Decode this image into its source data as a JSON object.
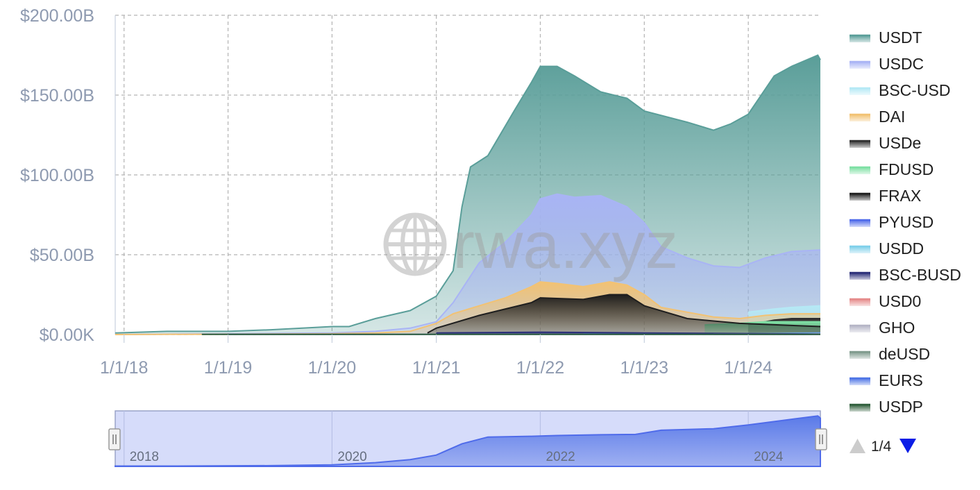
{
  "watermark": "rwa.xyz",
  "chart_data": {
    "type": "area",
    "stacked": false,
    "xlim": [
      "2017-12-01",
      "2024-09-10"
    ],
    "ylim": [
      0,
      200
    ],
    "y_ticks": [
      {
        "value": 0,
        "label": "$0.00K"
      },
      {
        "value": 50,
        "label": "$50.00B"
      },
      {
        "value": 100,
        "label": "$100.00B"
      },
      {
        "value": 150,
        "label": "$150.00B"
      },
      {
        "value": 200,
        "label": "$200.00B"
      }
    ],
    "x_ticks": [
      {
        "date": "2018-01-01",
        "label": "1/1/18"
      },
      {
        "date": "2019-01-01",
        "label": "1/1/19"
      },
      {
        "date": "2020-01-01",
        "label": "1/1/20"
      },
      {
        "date": "2021-01-01",
        "label": "1/1/21"
      },
      {
        "date": "2022-01-01",
        "label": "1/1/22"
      },
      {
        "date": "2023-01-01",
        "label": "1/1/23"
      },
      {
        "date": "2024-01-01",
        "label": "1/1/24"
      }
    ],
    "grid": true,
    "legend_position": "right",
    "series": [
      {
        "name": "USDT",
        "color": "#5a9e99",
        "points": [
          [
            "2017-12-01",
            1
          ],
          [
            "2018-06-01",
            2
          ],
          [
            "2019-01-01",
            2
          ],
          [
            "2019-06-01",
            3
          ],
          [
            "2020-01-01",
            5
          ],
          [
            "2020-03-01",
            5
          ],
          [
            "2020-06-01",
            10
          ],
          [
            "2020-10-01",
            15
          ],
          [
            "2021-01-01",
            24
          ],
          [
            "2021-03-01",
            40
          ],
          [
            "2021-04-01",
            80
          ],
          [
            "2021-05-01",
            105
          ],
          [
            "2021-07-01",
            112
          ],
          [
            "2021-10-01",
            140
          ],
          [
            "2021-12-01",
            158
          ],
          [
            "2022-01-01",
            168
          ],
          [
            "2022-03-01",
            168
          ],
          [
            "2022-05-01",
            162
          ],
          [
            "2022-08-01",
            152
          ],
          [
            "2022-11-01",
            148
          ],
          [
            "2023-01-01",
            140
          ],
          [
            "2023-06-01",
            133
          ],
          [
            "2023-09-01",
            128
          ],
          [
            "2023-11-01",
            132
          ],
          [
            "2024-01-01",
            138
          ],
          [
            "2024-04-01",
            162
          ],
          [
            "2024-06-01",
            168
          ],
          [
            "2024-09-01",
            175
          ],
          [
            "2024-09-10",
            172
          ]
        ]
      },
      {
        "name": "USDC",
        "color": "#a9b4f5",
        "points": [
          [
            "2017-12-01",
            0
          ],
          [
            "2019-01-01",
            0.5
          ],
          [
            "2020-01-01",
            1
          ],
          [
            "2020-06-01",
            2
          ],
          [
            "2020-10-01",
            4
          ],
          [
            "2021-01-01",
            8
          ],
          [
            "2021-03-01",
            20
          ],
          [
            "2021-06-01",
            45
          ],
          [
            "2021-09-01",
            58
          ],
          [
            "2021-12-01",
            75
          ],
          [
            "2022-01-01",
            85
          ],
          [
            "2022-03-01",
            88
          ],
          [
            "2022-05-01",
            86
          ],
          [
            "2022-08-01",
            87
          ],
          [
            "2022-11-01",
            80
          ],
          [
            "2023-01-01",
            70
          ],
          [
            "2023-03-01",
            55
          ],
          [
            "2023-06-01",
            48
          ],
          [
            "2023-09-01",
            43
          ],
          [
            "2023-12-01",
            42
          ],
          [
            "2024-03-01",
            48
          ],
          [
            "2024-06-01",
            52
          ],
          [
            "2024-09-10",
            53
          ]
        ]
      },
      {
        "name": "BSC-USD",
        "color": "#b5e9f5",
        "points": [
          [
            "2024-01-01",
            14
          ],
          [
            "2024-04-01",
            16
          ],
          [
            "2024-06-01",
            17
          ],
          [
            "2024-09-10",
            18
          ]
        ]
      },
      {
        "name": "DAI",
        "color": "#f2c273",
        "points": [
          [
            "2017-12-01",
            0
          ],
          [
            "2020-01-01",
            0.5
          ],
          [
            "2020-06-01",
            1
          ],
          [
            "2020-10-01",
            2
          ],
          [
            "2021-01-01",
            7
          ],
          [
            "2021-03-01",
            13
          ],
          [
            "2021-06-01",
            18
          ],
          [
            "2021-09-01",
            23
          ],
          [
            "2021-12-01",
            30
          ],
          [
            "2022-01-01",
            33
          ],
          [
            "2022-03-01",
            32
          ],
          [
            "2022-06-01",
            30
          ],
          [
            "2022-09-01",
            33
          ],
          [
            "2022-11-01",
            31
          ],
          [
            "2023-01-01",
            25
          ],
          [
            "2023-03-01",
            17
          ],
          [
            "2023-06-01",
            14
          ],
          [
            "2023-09-01",
            11
          ],
          [
            "2023-12-01",
            10
          ],
          [
            "2024-03-01",
            12
          ],
          [
            "2024-06-01",
            13
          ],
          [
            "2024-09-10",
            13
          ]
        ]
      },
      {
        "name": "USDe",
        "color": "#2e2e2e",
        "points": [
          [
            "2024-01-01",
            6
          ],
          [
            "2024-04-01",
            9
          ],
          [
            "2024-06-01",
            10
          ],
          [
            "2024-09-10",
            10
          ]
        ]
      },
      {
        "name": "FDUSD",
        "color": "#7ee0a4",
        "points": [
          [
            "2023-08-01",
            6
          ],
          [
            "2023-12-01",
            7
          ],
          [
            "2024-03-01",
            8
          ],
          [
            "2024-09-10",
            8
          ]
        ]
      },
      {
        "name": "FRAX",
        "color": "#1f1f1f",
        "points": [
          [
            "2020-12-01",
            1
          ],
          [
            "2021-01-01",
            4
          ],
          [
            "2021-06-01",
            12
          ],
          [
            "2021-12-01",
            20
          ],
          [
            "2022-01-01",
            23
          ],
          [
            "2022-06-01",
            22
          ],
          [
            "2022-09-01",
            25
          ],
          [
            "2022-11-01",
            25
          ],
          [
            "2023-01-01",
            18
          ],
          [
            "2023-06-01",
            10
          ],
          [
            "2023-12-01",
            7
          ],
          [
            "2024-09-10",
            5
          ]
        ]
      },
      {
        "name": "PYUSD",
        "color": "#4f6bea",
        "points": [
          [
            "2023-08-01",
            0.2
          ],
          [
            "2024-09-10",
            1
          ]
        ]
      },
      {
        "name": "USDD",
        "color": "#7fd0ea",
        "points": [
          [
            "2022-06-01",
            0.5
          ],
          [
            "2024-09-10",
            0.7
          ]
        ]
      },
      {
        "name": "BSC-BUSD",
        "color": "#2a2e78",
        "points": [
          [
            "2021-01-01",
            1
          ],
          [
            "2022-01-01",
            1.5
          ],
          [
            "2023-01-01",
            1
          ],
          [
            "2024-09-10",
            0.3
          ]
        ]
      },
      {
        "name": "USD0",
        "color": "#e58a8a",
        "points": [
          [
            "2024-06-01",
            0.1
          ],
          [
            "2024-09-10",
            0.3
          ]
        ]
      },
      {
        "name": "GHO",
        "color": "#b5b5c6",
        "points": [
          [
            "2023-09-01",
            0.1
          ],
          [
            "2024-09-10",
            0.2
          ]
        ]
      },
      {
        "name": "deUSD",
        "color": "#7e9a8c",
        "points": [
          [
            "2024-07-01",
            0.1
          ],
          [
            "2024-09-10",
            0.2
          ]
        ]
      },
      {
        "name": "EURS",
        "color": "#4d74e6",
        "points": [
          [
            "2019-01-01",
            0.1
          ],
          [
            "2024-09-10",
            0.1
          ]
        ]
      },
      {
        "name": "USDP",
        "color": "#2f5e3b",
        "points": [
          [
            "2018-10-01",
            0.1
          ],
          [
            "2024-09-10",
            0.1
          ]
        ]
      }
    ],
    "navigator": {
      "labels": [
        "2018",
        "2020",
        "2022",
        "2024"
      ],
      "series": [
        [
          "2017-12-01",
          1
        ],
        [
          "2018-06-01",
          1
        ],
        [
          "2019-06-01",
          2
        ],
        [
          "2020-01-01",
          4
        ],
        [
          "2020-06-01",
          10
        ],
        [
          "2020-10-01",
          18
        ],
        [
          "2021-01-01",
          30
        ],
        [
          "2021-04-01",
          60
        ],
        [
          "2021-07-01",
          78
        ],
        [
          "2021-12-01",
          80
        ],
        [
          "2022-03-01",
          82
        ],
        [
          "2022-08-01",
          84
        ],
        [
          "2022-12-01",
          85
        ],
        [
          "2023-03-01",
          96
        ],
        [
          "2023-09-01",
          100
        ],
        [
          "2024-01-01",
          110
        ],
        [
          "2024-06-01",
          125
        ],
        [
          "2024-09-01",
          134
        ],
        [
          "2024-09-10",
          128
        ]
      ]
    },
    "legend_pager": {
      "label": "1/4"
    }
  }
}
